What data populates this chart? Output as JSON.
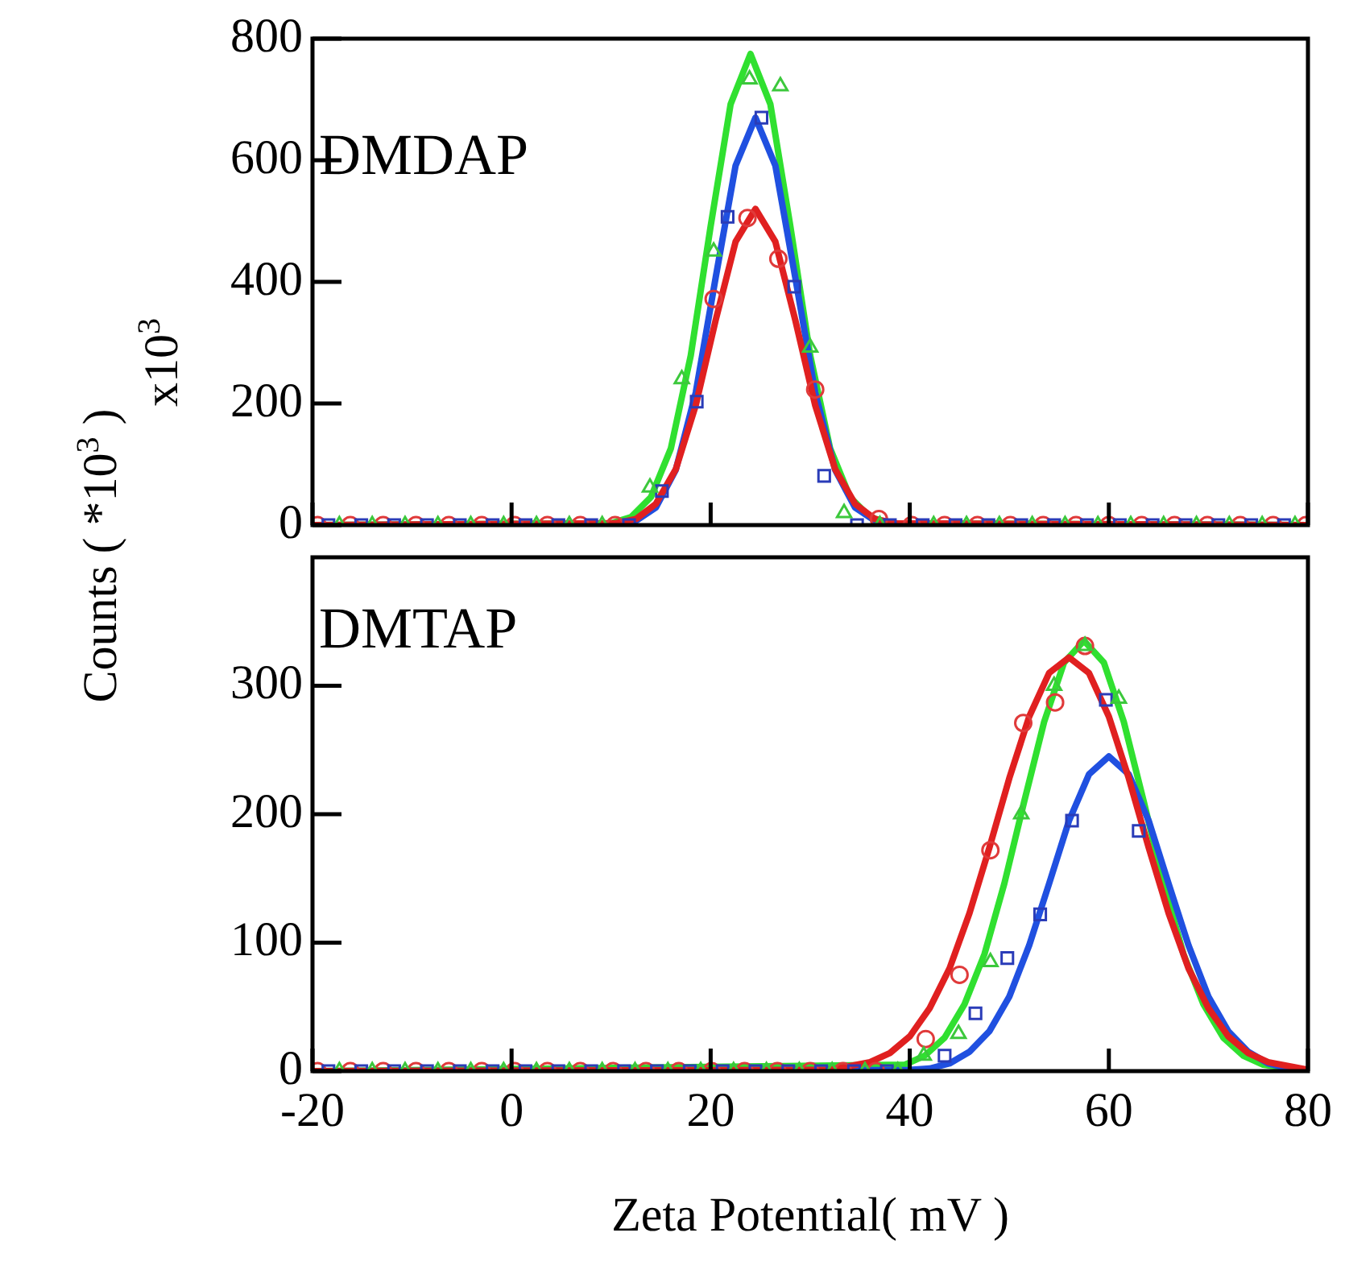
{
  "chart_data": [
    {
      "type": "line",
      "ylabel": "Counts ( *10$^{3}$ )",
      "annotations": [
        "DMDAP",
        "x10$^{3}$"
      ],
      "xlim": [
        -20,
        80
      ],
      "xticks": [
        -20,
        0,
        20,
        40,
        60,
        80
      ],
      "ylim": [
        0,
        800
      ],
      "yticks": [
        0,
        200,
        400,
        600,
        800
      ],
      "tick_labels": "y",
      "grid": false,
      "legend": false,
      "series": [
        {
          "type": "scatter",
          "marker": "circle",
          "color": "#e03a3a",
          "x": [
            -19.5,
            -16.2,
            -12.9,
            -9.6,
            -6.3,
            -3,
            0.3,
            3.6,
            6.9,
            10.4,
            20.3,
            23.7,
            26.8,
            30.5,
            36.9,
            40.2,
            43.5,
            46.8,
            50.1,
            53.4,
            56.7,
            60,
            63.3,
            66.6,
            69.9,
            73.2,
            76.5,
            79.8
          ],
          "values": [
            0,
            0,
            0,
            0,
            0,
            0,
            0,
            0,
            0,
            0,
            372,
            505,
            438,
            223,
            10,
            0,
            0,
            0,
            0,
            0,
            0,
            0,
            0,
            0,
            0,
            0,
            0,
            0
          ]
        },
        {
          "type": "scatter",
          "marker": "square",
          "color": "#2a3cb8",
          "x": [
            -18.4,
            -15.1,
            -11.8,
            -8.5,
            -5.2,
            -1.9,
            1.4,
            4.7,
            8,
            11.8,
            15.1,
            18.6,
            21.7,
            25.1,
            28.4,
            31.4,
            34.7,
            38,
            41.3,
            44.6,
            47.9,
            51.2,
            54.5,
            57.8,
            61.1,
            64.4,
            67.7,
            71,
            74.3,
            77.6
          ],
          "values": [
            0,
            0,
            0,
            0,
            0,
            0,
            0,
            0,
            0,
            0,
            56,
            203,
            507,
            670,
            392,
            81,
            0,
            0,
            0,
            0,
            0,
            0,
            0,
            0,
            0,
            0,
            0,
            0,
            0,
            0
          ]
        },
        {
          "type": "scatter",
          "marker": "triangle",
          "color": "#3cc83c",
          "x": [
            -17.3,
            -14,
            -10.7,
            -7.4,
            -4.1,
            -0.8,
            2.5,
            5.8,
            9.1,
            13.9,
            17.1,
            20.3,
            23.9,
            27,
            30,
            33.4,
            37,
            42.4,
            45.7,
            49,
            52.3,
            55.6,
            58.9,
            62.2,
            65.5,
            68.8,
            72.1,
            75.4,
            78.7
          ],
          "values": [
            0,
            0,
            0,
            0,
            0,
            0,
            0,
            0,
            0,
            62,
            240,
            450,
            733,
            722,
            292,
            20,
            0,
            0,
            0,
            0,
            0,
            0,
            0,
            0,
            0,
            0,
            0,
            0,
            0
          ]
        },
        {
          "type": "line",
          "line_style": "solid",
          "marker": "none",
          "color": "#e02020",
          "x": [
            -20,
            10.5,
            12.5,
            14.5,
            16.5,
            18.5,
            20.5,
            22.5,
            24.5,
            26.5,
            28.5,
            30.5,
            32.5,
            34.5,
            36.5,
            38.5,
            80
          ],
          "values": [
            0,
            3,
            10,
            35,
            92,
            197,
            337,
            466,
            520,
            466,
            337,
            197,
            92,
            35,
            10,
            3,
            0
          ]
        },
        {
          "type": "line",
          "line_style": "solid",
          "marker": "none",
          "color": "#2050e0",
          "x": [
            -20,
            10.5,
            12.5,
            14.5,
            16.5,
            18.5,
            20.5,
            22.5,
            24.5,
            26.5,
            28.5,
            30.5,
            32.5,
            34.5,
            36.5,
            38.5,
            80
          ],
          "values": [
            0,
            1,
            7,
            29,
            91,
            218,
            407,
            591,
            670,
            591,
            407,
            218,
            91,
            29,
            7,
            1,
            0
          ]
        },
        {
          "type": "line",
          "line_style": "solid",
          "marker": "none",
          "color": "#30e030",
          "x": [
            -20,
            10,
            12,
            14,
            16,
            18,
            20,
            22,
            24,
            26,
            28,
            30,
            32,
            34,
            36,
            38,
            80
          ],
          "values": [
            0,
            3,
            13,
            46,
            126,
            279,
            492,
            692,
            775,
            692,
            492,
            279,
            126,
            46,
            13,
            3,
            0
          ]
        }
      ]
    },
    {
      "type": "line",
      "xlabel": "Zeta Potential( mV )",
      "annotations": [
        "DMTAP"
      ],
      "xlim": [
        -20,
        80
      ],
      "xticks": [
        -20,
        0,
        20,
        40,
        60,
        80
      ],
      "ylim": [
        0,
        400
      ],
      "yticks": [
        0,
        100,
        200,
        300
      ],
      "grid": false,
      "legend": false,
      "series": [
        {
          "type": "scatter",
          "marker": "circle",
          "color": "#e03a3a",
          "x": [
            -19.5,
            -16.2,
            -12.9,
            -9.6,
            -6.3,
            -3,
            0.3,
            3.6,
            6.9,
            10.2,
            13.5,
            16.8,
            20.1,
            23.4,
            26.7,
            30,
            33.3,
            36.6,
            41.6,
            45,
            48.1,
            51.4,
            54.6,
            57.6
          ],
          "values": [
            0,
            0,
            0,
            0,
            0,
            0,
            0,
            0,
            0,
            0,
            0,
            0,
            0,
            0,
            0,
            0,
            0,
            0,
            25,
            75,
            172,
            271,
            287,
            331
          ]
        },
        {
          "type": "scatter",
          "marker": "square",
          "color": "#2a3cb8",
          "x": [
            -18.4,
            -15.1,
            -11.8,
            -8.5,
            -5.2,
            -1.9,
            1.4,
            4.7,
            8,
            11.3,
            14.6,
            17.9,
            21.2,
            24.5,
            27.8,
            31.1,
            34.4,
            37.7,
            43.5,
            46.6,
            49.8,
            53.1,
            56.3,
            59.7,
            63
          ],
          "values": [
            0,
            0,
            0,
            0,
            0,
            0,
            0,
            0,
            0,
            0,
            0,
            0,
            0,
            0,
            0,
            0,
            0,
            0,
            12,
            45,
            88,
            122,
            195,
            289,
            187
          ]
        },
        {
          "type": "scatter",
          "marker": "triangle",
          "color": "#3cc83c",
          "x": [
            -17.3,
            -14,
            -10.7,
            -7.4,
            -4.1,
            -0.8,
            2.5,
            5.8,
            9.1,
            12.4,
            15.7,
            19,
            22.3,
            25.6,
            28.9,
            32.2,
            35.5,
            38.8,
            41.4,
            44.9,
            48.1,
            51.2,
            54.5,
            57.6,
            61
          ],
          "values": [
            0,
            0,
            0,
            0,
            0,
            0,
            0,
            0,
            0,
            0,
            0,
            0,
            0,
            0,
            0,
            0,
            0,
            0,
            12,
            29,
            85,
            200,
            300,
            331,
            290
          ]
        },
        {
          "type": "line",
          "line_style": "solid",
          "marker": "none",
          "color": "#e02020",
          "x": [
            -20,
            32,
            36,
            38,
            40,
            42,
            44,
            46,
            48,
            50,
            52,
            54,
            56,
            58,
            60,
            62,
            64,
            66,
            68,
            70,
            72,
            74,
            76,
            80
          ],
          "values": [
            0,
            1,
            7,
            14,
            27,
            49,
            80,
            123,
            174,
            228,
            276,
            310,
            322,
            310,
            276,
            228,
            174,
            123,
            80,
            49,
            27,
            14,
            7,
            1
          ]
        },
        {
          "type": "line",
          "line_style": "solid",
          "marker": "none",
          "color": "#2050e0",
          "x": [
            -20,
            40,
            42,
            44,
            46,
            48,
            50,
            52,
            54,
            56,
            58,
            60,
            62,
            64,
            66,
            68,
            70,
            72,
            74,
            76,
            78,
            80
          ],
          "values": [
            0,
            1,
            2,
            6,
            15,
            31,
            58,
            98,
            146,
            195,
            231,
            245,
            231,
            195,
            146,
            98,
            58,
            31,
            15,
            6,
            2,
            1
          ]
        },
        {
          "type": "line",
          "line_style": "solid",
          "marker": "none",
          "color": "#30e030",
          "x": [
            -20,
            39.5,
            41.5,
            43.5,
            45.5,
            47.5,
            49.5,
            51.5,
            53.5,
            55.5,
            57.5,
            59.5,
            61.5,
            63.5,
            65.5,
            67.5,
            69.5,
            71.5,
            73.5,
            75.5,
            80
          ],
          "values": [
            0,
            5,
            12,
            26,
            52,
            91,
            146,
            210,
            272,
            318,
            335,
            318,
            272,
            210,
            146,
            91,
            52,
            26,
            12,
            5,
            0
          ]
        }
      ]
    }
  ]
}
